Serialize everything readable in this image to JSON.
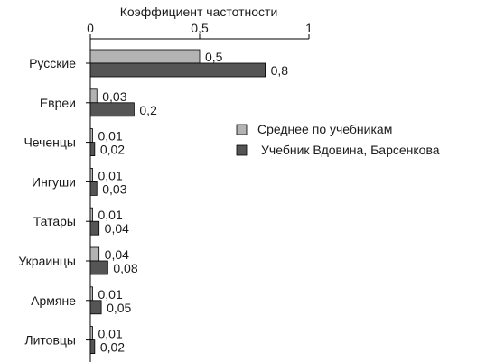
{
  "chart_data": {
    "type": "bar",
    "orientation": "horizontal",
    "xlabel": "Коэффициент частотности",
    "xlim": [
      0,
      1
    ],
    "x_ticks": [
      "0",
      "0,5",
      "1"
    ],
    "x_axis_position": "top",
    "grid": false,
    "legend_position": "right",
    "categories": [
      "Русские",
      "Евреи",
      "Чеченцы",
      "Ингуши",
      "Татары",
      "Украинцы",
      "Армяне",
      "Литовцы"
    ],
    "series": [
      {
        "name": "Среднее по учебникам",
        "color": "#b3b3b3",
        "values": [
          0.5,
          0.03,
          0.01,
          0.01,
          0.01,
          0.04,
          0.01,
          0.01
        ],
        "labels": [
          "0,5",
          "0,03",
          "0,01",
          "0,01",
          "0,01",
          "0,04",
          "0,01",
          "0,01"
        ]
      },
      {
        "name": "Учебник Вдовина, Барсенкова",
        "color": "#555555",
        "values": [
          0.8,
          0.2,
          0.02,
          0.03,
          0.04,
          0.08,
          0.05,
          0.02
        ],
        "labels": [
          "0,8",
          "0,2",
          "0,02",
          "0,03",
          "0,04",
          "0,08",
          "0,05",
          "0,02"
        ]
      }
    ]
  }
}
